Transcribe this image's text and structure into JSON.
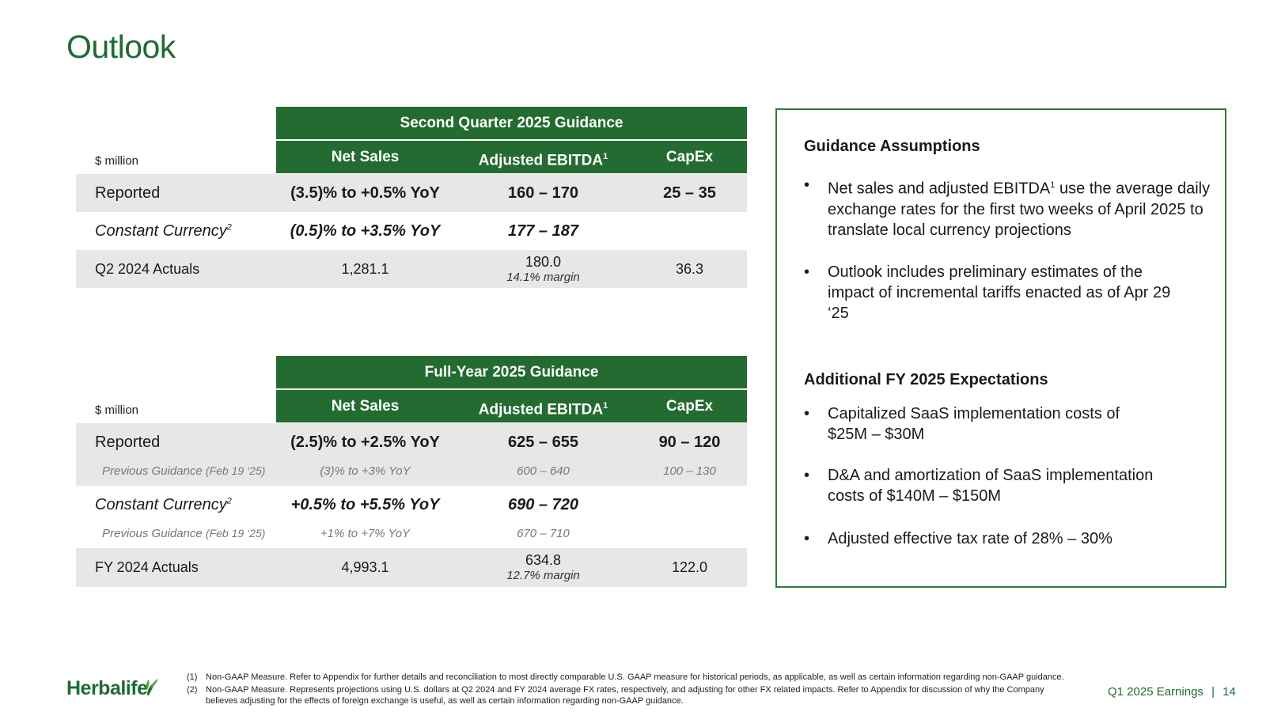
{
  "page": {
    "title": "Outlook",
    "brand": "Herbalife",
    "footer_label": "Q1 2025 Earnings",
    "footer_sep": "|",
    "page_number": "14"
  },
  "q2": {
    "header": "Second Quarter 2025 Guidance",
    "unit": "$ million",
    "columns": [
      "Net Sales",
      "Adjusted EBITDA",
      "CapEx"
    ],
    "ebitda_sup": "1",
    "rows": {
      "reported": {
        "label": "Reported",
        "net_sales": "(3.5)% to +0.5% YoY",
        "ebitda": "160 – 170",
        "capex": "25 – 35"
      },
      "constant": {
        "label": "Constant Currency",
        "sup": "2",
        "net_sales": "(0.5)% to +3.5% YoY",
        "ebitda": "177 – 187",
        "capex": ""
      },
      "actuals": {
        "label": "Q2 2024 Actuals",
        "net_sales": "1,281.1",
        "ebitda": "180.0",
        "ebitda_margin": "14.1% margin",
        "capex": "36.3"
      }
    }
  },
  "fy": {
    "header": "Full-Year 2025 Guidance",
    "unit": "$ million",
    "columns": [
      "Net Sales",
      "Adjusted EBITDA",
      "CapEx"
    ],
    "ebitda_sup": "1",
    "rows": {
      "reported": {
        "label": "Reported",
        "net_sales": "(2.5)% to +2.5% YoY",
        "ebitda": "625 – 655",
        "capex": "90 – 120"
      },
      "reported_prev": {
        "label": "Previous Guidance",
        "date": "(Feb 19 ‘25)",
        "net_sales": "(3)% to +3% YoY",
        "ebitda": "600 – 640",
        "capex": "100 – 130"
      },
      "constant": {
        "label": "Constant Currency",
        "sup": "2",
        "net_sales": "+0.5% to +5.5% YoY",
        "ebitda": "690 – 720",
        "capex": ""
      },
      "constant_prev": {
        "label": "Previous Guidance",
        "date": "(Feb 19 ‘25)",
        "net_sales": "+1% to +7% YoY",
        "ebitda": "670 – 710",
        "capex": ""
      },
      "actuals": {
        "label": "FY 2024 Actuals",
        "net_sales": "4,993.1",
        "ebitda": "634.8",
        "ebitda_margin": "12.7% margin",
        "capex": "122.0"
      }
    }
  },
  "assumptions": {
    "heading": "Guidance Assumptions",
    "bullets": [
      {
        "pre": "Net sales and adjusted EBITDA",
        "sup": "1",
        "post": " use the average daily exchange rates for the first two weeks of April 2025 to translate local currency projections"
      },
      {
        "text": "Outlook includes preliminary estimates of the impact of incremental tariffs enacted as of Apr 29 ‘25"
      }
    ],
    "heading2": "Additional FY 2025 Expectations",
    "bullets2": [
      "Capitalized SaaS implementation costs of $25M – $30M",
      "D&A and amortization of SaaS implementation costs of $140M – $150M",
      "Adjusted effective tax rate of 28% – 30%"
    ],
    "bullet_char": "•"
  },
  "footnotes": [
    {
      "num": "(1)",
      "text": "Non-GAAP Measure. Refer to Appendix for further details and reconciliation to most directly comparable U.S. GAAP measure for historical periods, as applicable, as well as certain information regarding non-GAAP guidance."
    },
    {
      "num": "(2)",
      "text": "Non-GAAP Measure. Represents projections using U.S. dollars at Q2 2024 and FY 2024 average FX rates, respectively, and adjusting for other FX related impacts. Refer to Appendix for discussion of why the Company believes adjusting for the effects of foreign exchange is useful, as well as certain information regarding non-GAAP guidance."
    }
  ],
  "colors": {
    "brand_green": "#236b31",
    "title_green": "#1f6b33",
    "row_shade": "#e7e7e6",
    "box_border": "#2c7a3c"
  }
}
